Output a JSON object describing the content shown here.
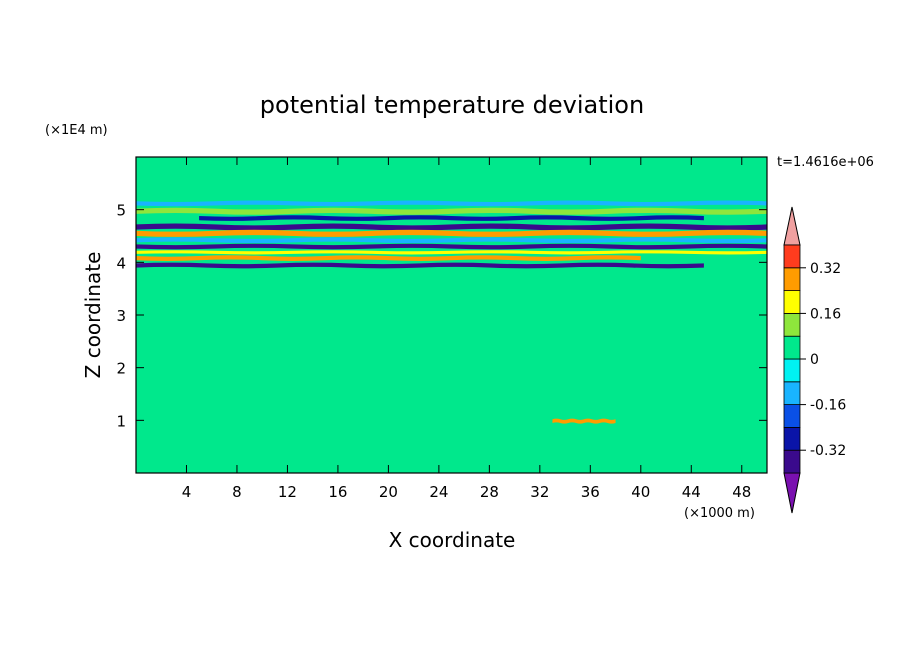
{
  "chart_data": {
    "type": "heatmap",
    "title": "potential temperature deviation",
    "xlabel": "X coordinate",
    "ylabel": "Z coordinate",
    "x_unit": "(×1000 m)",
    "y_unit": "(×1E4 m)",
    "time_label": "t=1.4616e+06",
    "xlim": [
      0,
      50
    ],
    "ylim": [
      0,
      6
    ],
    "x_ticks": [
      4,
      8,
      12,
      16,
      20,
      24,
      28,
      32,
      36,
      40,
      44,
      48
    ],
    "y_ticks": [
      1,
      2,
      3,
      4,
      5
    ],
    "colorbar": {
      "levels": [
        -0.4,
        -0.32,
        -0.24,
        -0.16,
        -0.08,
        0,
        0.08,
        0.16,
        0.24,
        0.32,
        0.4
      ],
      "colors": [
        "#3a0a8c",
        "#0a14a8",
        "#0a50e6",
        "#19b4ff",
        "#00f2f2",
        "#00e88c",
        "#8ee63c",
        "#ffff00",
        "#ff9c00",
        "#ff3c1e",
        "#f0a0a0"
      ],
      "under_color": "#7a10b0",
      "over_color": "#f0a0a0",
      "tick_labels": [
        "0.32",
        "0.16",
        "0",
        "-0.16",
        "-0.32"
      ],
      "tick_values": [
        0.32,
        0.16,
        0,
        -0.16,
        -0.32
      ]
    },
    "background_color": "#00e88c",
    "bands": [
      {
        "x": [
          0,
          50
        ],
        "z": [
          5.55,
          5.7
        ],
        "value": 0.04
      },
      {
        "x": [
          0,
          50
        ],
        "z": [
          5.2,
          5.3
        ],
        "value": 0.04
      },
      {
        "x": [
          0,
          50
        ],
        "z": [
          5.08,
          5.16
        ],
        "value": -0.12
      },
      {
        "x": [
          0,
          50
        ],
        "z": [
          4.92,
          5.02
        ],
        "value": 0.14
      },
      {
        "x": [
          5,
          45
        ],
        "z": [
          4.8,
          4.88
        ],
        "value": -0.3
      },
      {
        "x": [
          0,
          50
        ],
        "z": [
          4.62,
          4.72
        ],
        "value": -0.34
      },
      {
        "x": [
          0,
          50
        ],
        "z": [
          4.5,
          4.6
        ],
        "value": 0.3
      },
      {
        "x": [
          0,
          50
        ],
        "z": [
          4.38,
          4.46
        ],
        "value": -0.12
      },
      {
        "x": [
          0,
          50
        ],
        "z": [
          4.26,
          4.34
        ],
        "value": -0.34
      },
      {
        "x": [
          0,
          50
        ],
        "z": [
          4.16,
          4.22
        ],
        "value": 0.22
      },
      {
        "x": [
          0,
          40
        ],
        "z": [
          4.04,
          4.12
        ],
        "value": 0.28
      },
      {
        "x": [
          0,
          45
        ],
        "z": [
          3.9,
          3.98
        ],
        "value": -0.34
      },
      {
        "x": [
          0,
          50
        ],
        "z": [
          3.75,
          3.85
        ],
        "value": 0.04
      },
      {
        "x": [
          0,
          50
        ],
        "z": [
          3.2,
          3.35
        ],
        "value": 0.04
      },
      {
        "x": [
          0,
          50
        ],
        "z": [
          2.9,
          3.0
        ],
        "value": 0.04
      },
      {
        "x": [
          0,
          50
        ],
        "z": [
          2.5,
          2.65
        ],
        "value": 0.04
      },
      {
        "x": [
          0,
          50
        ],
        "z": [
          2.15,
          2.3
        ],
        "value": 0.04
      },
      {
        "x": [
          0,
          50
        ],
        "z": [
          1.7,
          1.85
        ],
        "value": 0.04
      },
      {
        "x": [
          0,
          50
        ],
        "z": [
          1.3,
          1.45
        ],
        "value": 0.04
      },
      {
        "x": [
          33,
          38
        ],
        "z": [
          0.95,
          1.02
        ],
        "value": 0.3
      },
      {
        "x": [
          0,
          50
        ],
        "z": [
          0.5,
          0.85
        ],
        "value": 0.04
      },
      {
        "x": [
          0,
          50
        ],
        "z": [
          0.05,
          0.25
        ],
        "value": 0.04
      }
    ]
  }
}
